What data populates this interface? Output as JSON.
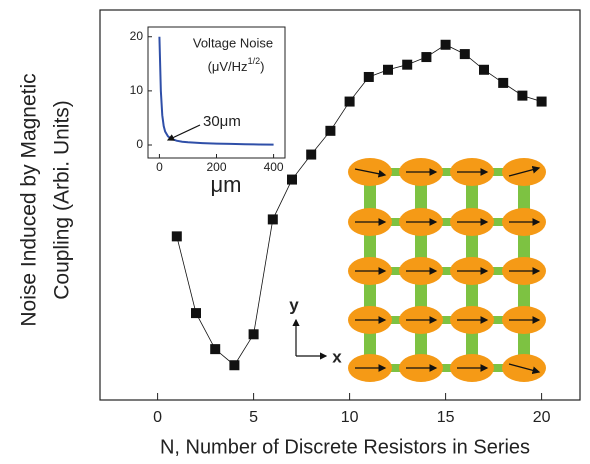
{
  "chart_data": [
    {
      "type": "line",
      "ylabel_lines": [
        "Noise Induced by Magnetic",
        "Coupling (Arbi. Units)"
      ],
      "xlabel": "N, Number of Discrete Resistors in Series",
      "x": [
        1,
        2,
        3,
        4,
        5,
        6,
        7,
        8,
        9,
        10,
        11,
        12,
        13,
        14,
        15,
        16,
        17,
        18,
        19,
        20
      ],
      "values": [
        3.86,
        2.05,
        1.2,
        0.82,
        1.55,
        4.26,
        5.2,
        5.79,
        6.35,
        7.04,
        7.62,
        7.79,
        7.91,
        8.09,
        8.38,
        8.16,
        7.79,
        7.48,
        7.18,
        7.04
      ],
      "color": "#111111",
      "xlim": [
        -3,
        22
      ],
      "xticks": [
        0,
        5,
        10,
        15,
        20
      ],
      "ylim": [
        0,
        9.2
      ],
      "diagram_labels": {
        "y": "y",
        "x": "x"
      }
    },
    {
      "type": "line",
      "title": "Voltage Noise",
      "unit": {
        "base": "(μV/Hz",
        "sup": "1/2",
        "close": ")"
      },
      "annotation": "30μm",
      "xlabel": "μm",
      "x": [
        0,
        5,
        10,
        15,
        20,
        30,
        40,
        60,
        80,
        100,
        150,
        200,
        250,
        300,
        350,
        400
      ],
      "values": [
        20,
        10,
        5.5,
        3.5,
        2.5,
        1.6,
        1.2,
        0.8,
        0.6,
        0.5,
        0.35,
        0.25,
        0.2,
        0.15,
        0.1,
        0.08
      ],
      "color": "#2f4fa8",
      "xlim": [
        -40,
        440
      ],
      "xticks": [
        0,
        200,
        400
      ],
      "ylim": [
        -2.4,
        21.8
      ],
      "yticks": [
        0,
        10,
        20
      ]
    }
  ]
}
